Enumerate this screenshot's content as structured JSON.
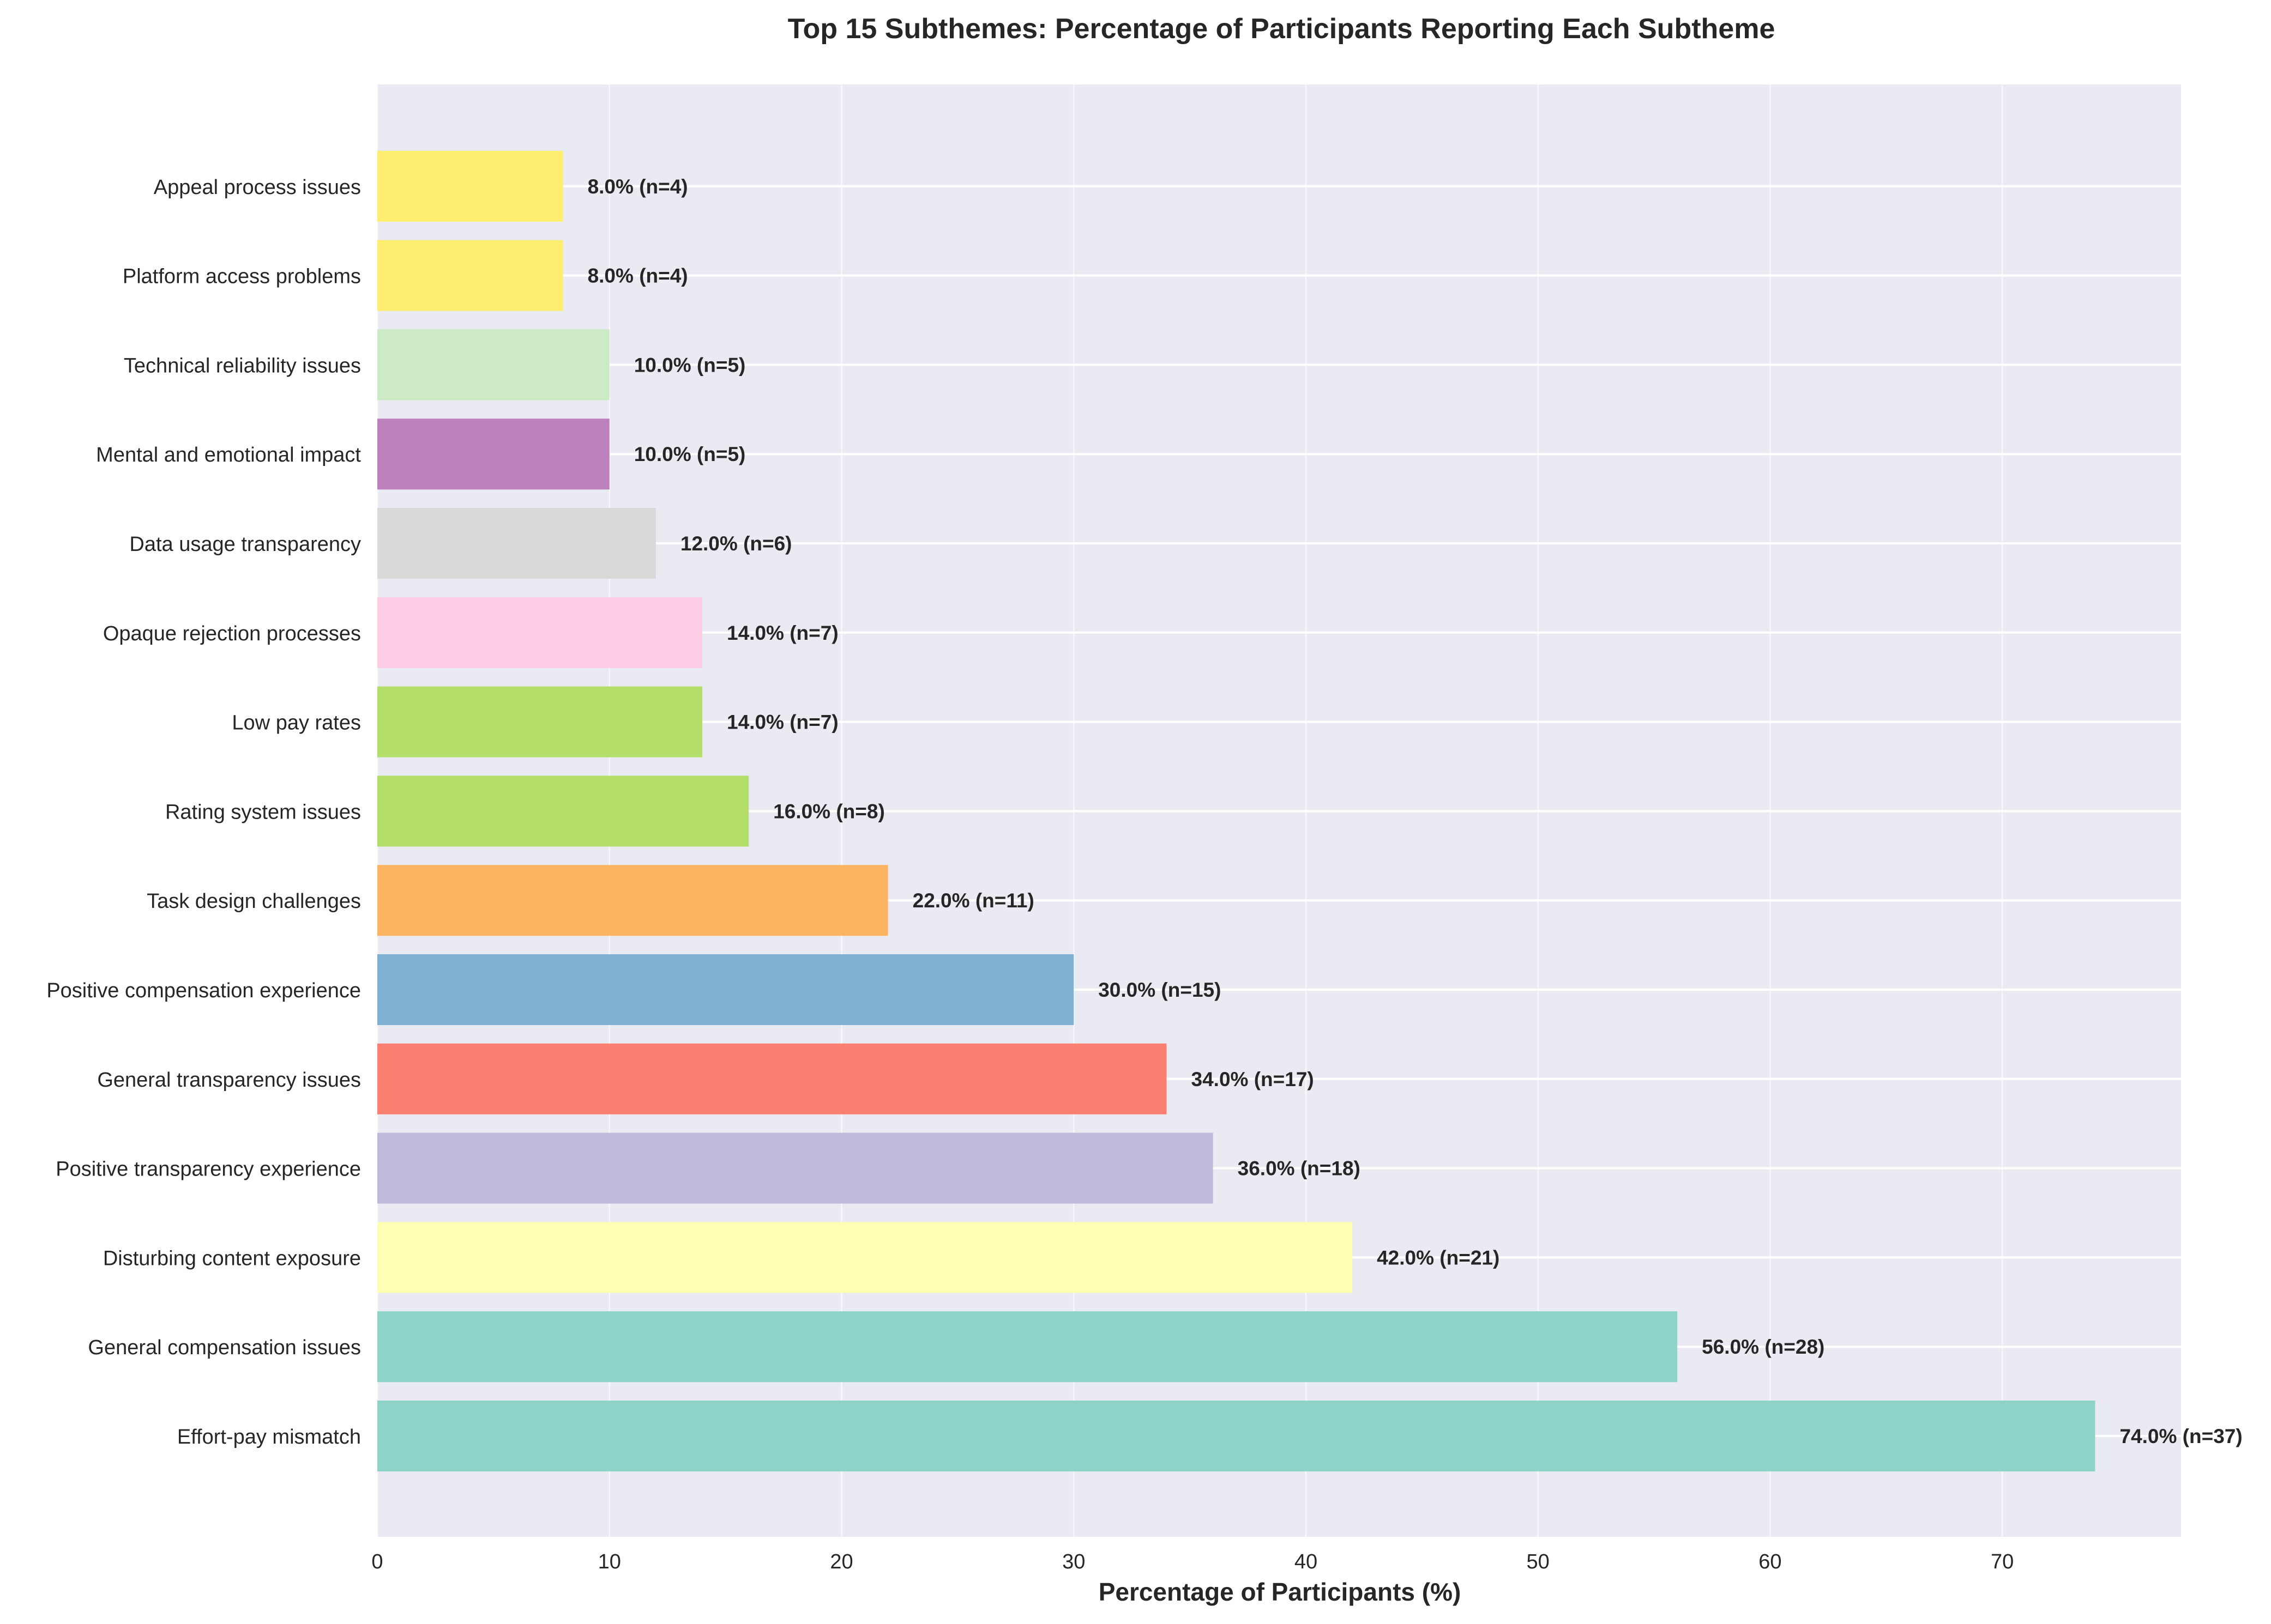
{
  "chart_data": {
    "type": "bar",
    "orientation": "horizontal",
    "title": "Top 15 Subthemes: Percentage of Participants Reporting Each Subtheme",
    "xlabel": "Percentage of Participants (%)",
    "ylabel": "",
    "xlim": [
      0,
      77.7
    ],
    "xticks": [
      0,
      10,
      20,
      30,
      40,
      50,
      60,
      70
    ],
    "grid": true,
    "legend": "none",
    "categories": [
      "Effort-pay mismatch",
      "General compensation issues",
      "Disturbing content exposure",
      "Positive transparency experience",
      "General transparency issues",
      "Positive compensation experience",
      "Task design challenges",
      "Rating system issues",
      "Low pay rates",
      "Opaque rejection processes",
      "Data usage transparency",
      "Mental and emotional impact",
      "Technical reliability issues",
      "Platform access problems",
      "Appeal process issues"
    ],
    "values": [
      74.0,
      56.0,
      42.0,
      36.0,
      34.0,
      30.0,
      22.0,
      16.0,
      14.0,
      14.0,
      12.0,
      10.0,
      10.0,
      8.0,
      8.0
    ],
    "counts": [
      37,
      28,
      21,
      18,
      17,
      15,
      11,
      8,
      7,
      7,
      6,
      5,
      5,
      4,
      4
    ],
    "data_labels": [
      "74.0% (n=37)",
      "56.0% (n=28)",
      "42.0% (n=21)",
      "36.0% (n=18)",
      "34.0% (n=17)",
      "30.0% (n=15)",
      "22.0% (n=11)",
      "16.0% (n=8)",
      "14.0% (n=7)",
      "14.0% (n=7)",
      "12.0% (n=6)",
      "10.0% (n=5)",
      "10.0% (n=5)",
      "8.0% (n=4)",
      "8.0% (n=4)"
    ],
    "colors": [
      "#8dd3c7",
      "#8dd3c7",
      "#ffffb3",
      "#bebada",
      "#fb8072",
      "#80b1d3",
      "#fdb462",
      "#b3de69",
      "#b3de69",
      "#fccde5",
      "#d9d9d9",
      "#bc80bd",
      "#ccebc5",
      "#ffed6f",
      "#ffed6f"
    ],
    "plot_background": "#eaeaf2",
    "grid_color": "#ffffff"
  }
}
